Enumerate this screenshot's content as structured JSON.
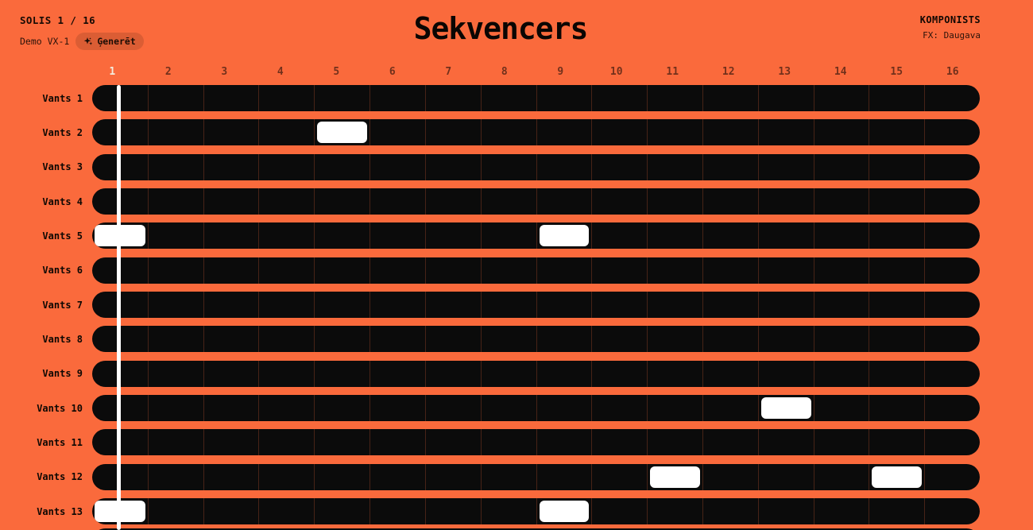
{
  "header": {
    "step_label": "SOLIS 1 / 16",
    "device_label": "Demo VX-1",
    "generate_label": "Ģenerēt",
    "title": "Sekvencers",
    "composer_label": "KOMPONISTS",
    "fx_label": "FX: Daugava"
  },
  "step_header": {
    "steps": [
      "1",
      "2",
      "3",
      "4",
      "5",
      "6",
      "7",
      "8",
      "9",
      "10",
      "11",
      "12",
      "13",
      "14",
      "15",
      "16"
    ],
    "active_step": 1
  },
  "tracks": [
    {
      "label": "Vants 1",
      "active_steps": []
    },
    {
      "label": "Vants 2",
      "active_steps": [
        5
      ]
    },
    {
      "label": "Vants 3",
      "active_steps": []
    },
    {
      "label": "Vants 4",
      "active_steps": []
    },
    {
      "label": "Vants 5",
      "active_steps": [
        1,
        9
      ]
    },
    {
      "label": "Vants 6",
      "active_steps": []
    },
    {
      "label": "Vants 7",
      "active_steps": []
    },
    {
      "label": "Vants 8",
      "active_steps": []
    },
    {
      "label": "Vants 9",
      "active_steps": []
    },
    {
      "label": "Vants 10",
      "active_steps": [
        13
      ]
    },
    {
      "label": "Vants 11",
      "active_steps": []
    },
    {
      "label": "Vants 12",
      "active_steps": [
        11,
        15
      ]
    },
    {
      "label": "Vants 13",
      "active_steps": [
        1,
        9
      ]
    }
  ],
  "playhead": {
    "at_step": 1
  },
  "colors": {
    "background": "#FA6A3C",
    "track": "#0B0B0B",
    "note_active": "#FFFFFF",
    "playhead": "#FFFFFF",
    "step_active_text": "#F4ECDC",
    "step_muted_text": "rgba(0,0,0,0.55)",
    "button_bg": "rgba(0,0,0,0.12)"
  }
}
